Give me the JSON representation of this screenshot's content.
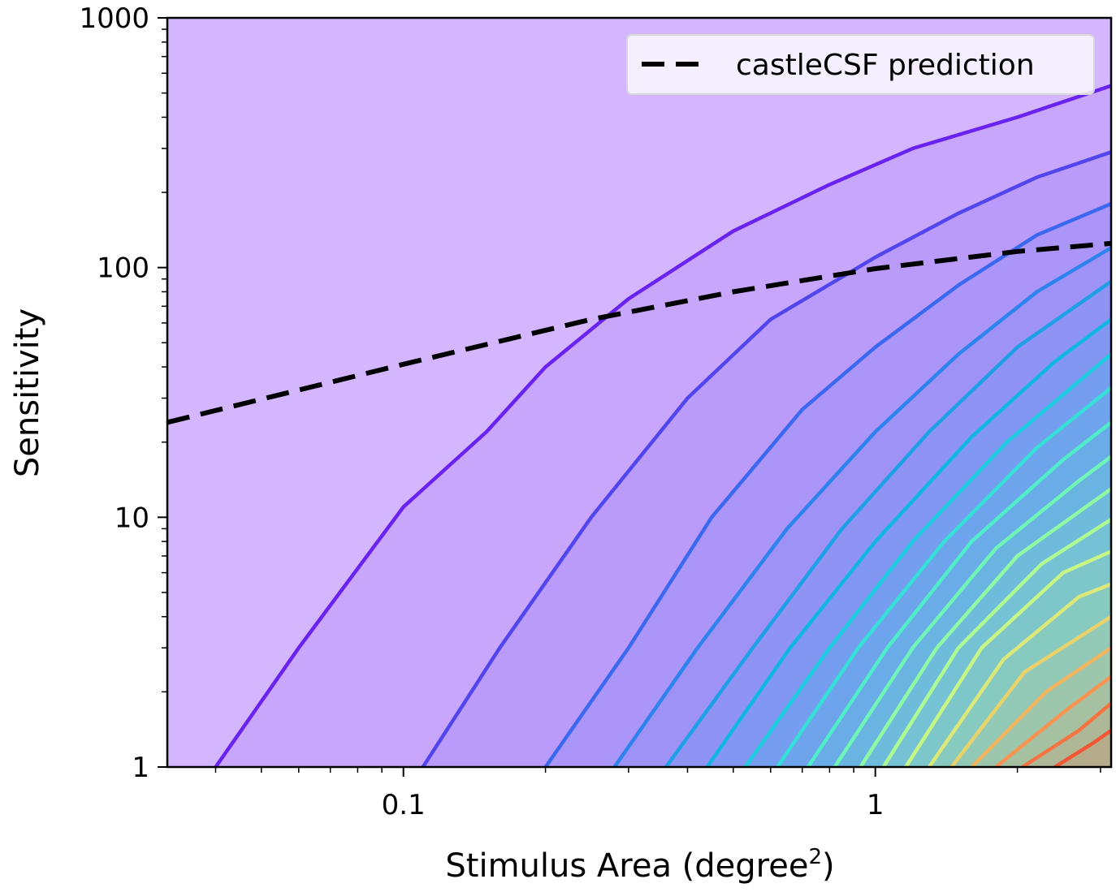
{
  "chart_data": {
    "type": "contour",
    "title": "",
    "xlabel": "Stimulus Area (degree",
    "xlabel_superscript": "2",
    "xlabel_close": ")",
    "ylabel": "Sensitivity",
    "xscale": "log",
    "yscale": "log",
    "xlim": [
      0.0316,
      3.16
    ],
    "ylim": [
      1,
      1000
    ],
    "xticks": [
      {
        "value": 0.1,
        "label": "0.1"
      },
      {
        "value": 1,
        "label": "1"
      }
    ],
    "yticks": [
      {
        "value": 1,
        "label": "1"
      },
      {
        "value": 10,
        "label": "10"
      },
      {
        "value": 100,
        "label": "100"
      },
      {
        "value": 1000,
        "label": "1000"
      }
    ],
    "legend": {
      "position": "upper right",
      "entries": [
        {
          "label": "castleCSF prediction",
          "style": "dashed",
          "color": "#000000"
        }
      ]
    },
    "prediction_line": {
      "label": "castleCSF prediction",
      "points": [
        {
          "x": 0.0316,
          "y": 24
        },
        {
          "x": 0.1,
          "y": 41
        },
        {
          "x": 0.25,
          "y": 62
        },
        {
          "x": 0.5,
          "y": 80
        },
        {
          "x": 1,
          "y": 99
        },
        {
          "x": 2,
          "y": 116
        },
        {
          "x": 3.16,
          "y": 125
        }
      ]
    },
    "contour_levels": [
      {
        "color": "#6a22f0",
        "points": [
          {
            "x": 0.04,
            "y": 1
          },
          {
            "x": 0.06,
            "y": 3
          },
          {
            "x": 0.1,
            "y": 11
          },
          {
            "x": 0.15,
            "y": 22
          },
          {
            "x": 0.2,
            "y": 40
          },
          {
            "x": 0.3,
            "y": 75
          },
          {
            "x": 0.5,
            "y": 140
          },
          {
            "x": 0.8,
            "y": 215
          },
          {
            "x": 1.2,
            "y": 300
          },
          {
            "x": 2,
            "y": 400
          },
          {
            "x": 3.16,
            "y": 535
          }
        ]
      },
      {
        "color": "#5146ee",
        "points": [
          {
            "x": 0.11,
            "y": 1
          },
          {
            "x": 0.16,
            "y": 3
          },
          {
            "x": 0.25,
            "y": 10
          },
          {
            "x": 0.4,
            "y": 30
          },
          {
            "x": 0.6,
            "y": 62
          },
          {
            "x": 1,
            "y": 110
          },
          {
            "x": 1.5,
            "y": 165
          },
          {
            "x": 2.2,
            "y": 230
          },
          {
            "x": 3.16,
            "y": 290
          }
        ]
      },
      {
        "color": "#3b68f0",
        "points": [
          {
            "x": 0.2,
            "y": 1
          },
          {
            "x": 0.3,
            "y": 3
          },
          {
            "x": 0.45,
            "y": 10
          },
          {
            "x": 0.7,
            "y": 27
          },
          {
            "x": 1,
            "y": 48
          },
          {
            "x": 1.5,
            "y": 85
          },
          {
            "x": 2.2,
            "y": 135
          },
          {
            "x": 3.16,
            "y": 180
          }
        ]
      },
      {
        "color": "#2d83ee",
        "points": [
          {
            "x": 0.28,
            "y": 1
          },
          {
            "x": 0.42,
            "y": 3
          },
          {
            "x": 0.65,
            "y": 9
          },
          {
            "x": 1,
            "y": 22
          },
          {
            "x": 1.5,
            "y": 45
          },
          {
            "x": 2.2,
            "y": 80
          },
          {
            "x": 3.16,
            "y": 120
          }
        ]
      },
      {
        "color": "#1ea0e8",
        "points": [
          {
            "x": 0.36,
            "y": 1
          },
          {
            "x": 0.55,
            "y": 3
          },
          {
            "x": 0.85,
            "y": 9
          },
          {
            "x": 1.3,
            "y": 22
          },
          {
            "x": 2,
            "y": 48
          },
          {
            "x": 3.16,
            "y": 88
          }
        ]
      },
      {
        "color": "#10b6e2",
        "points": [
          {
            "x": 0.44,
            "y": 1
          },
          {
            "x": 0.66,
            "y": 3
          },
          {
            "x": 1,
            "y": 8
          },
          {
            "x": 1.6,
            "y": 21
          },
          {
            "x": 2.4,
            "y": 42
          },
          {
            "x": 3.16,
            "y": 62
          }
        ]
      },
      {
        "color": "#1ccde0",
        "points": [
          {
            "x": 0.53,
            "y": 1
          },
          {
            "x": 0.8,
            "y": 3
          },
          {
            "x": 1.2,
            "y": 8
          },
          {
            "x": 1.9,
            "y": 20
          },
          {
            "x": 3.16,
            "y": 45
          }
        ]
      },
      {
        "color": "#35e0d6",
        "points": [
          {
            "x": 0.62,
            "y": 1
          },
          {
            "x": 0.92,
            "y": 3
          },
          {
            "x": 1.4,
            "y": 8
          },
          {
            "x": 2.2,
            "y": 19
          },
          {
            "x": 3.16,
            "y": 33
          }
        ]
      },
      {
        "color": "#4fedc8",
        "points": [
          {
            "x": 0.72,
            "y": 1
          },
          {
            "x": 1.06,
            "y": 3
          },
          {
            "x": 1.6,
            "y": 8
          },
          {
            "x": 2.5,
            "y": 17
          },
          {
            "x": 3.16,
            "y": 24
          }
        ]
      },
      {
        "color": "#6ff5b6",
        "points": [
          {
            "x": 0.82,
            "y": 1
          },
          {
            "x": 1.2,
            "y": 3
          },
          {
            "x": 1.8,
            "y": 7.5
          },
          {
            "x": 2.7,
            "y": 14
          },
          {
            "x": 3.16,
            "y": 17.5
          }
        ]
      },
      {
        "color": "#8ff9a4",
        "points": [
          {
            "x": 0.93,
            "y": 1
          },
          {
            "x": 1.35,
            "y": 3
          },
          {
            "x": 2,
            "y": 7
          },
          {
            "x": 3.16,
            "y": 13
          }
        ]
      },
      {
        "color": "#aefb94",
        "points": [
          {
            "x": 1.04,
            "y": 1
          },
          {
            "x": 1.5,
            "y": 3
          },
          {
            "x": 2.25,
            "y": 6.5
          },
          {
            "x": 3.16,
            "y": 9.8
          }
        ]
      },
      {
        "color": "#c8f685",
        "points": [
          {
            "x": 1.16,
            "y": 1
          },
          {
            "x": 1.68,
            "y": 3
          },
          {
            "x": 2.5,
            "y": 6
          },
          {
            "x": 3.16,
            "y": 7.3
          }
        ]
      },
      {
        "color": "#dce877",
        "points": [
          {
            "x": 1.3,
            "y": 1
          },
          {
            "x": 1.87,
            "y": 2.7
          },
          {
            "x": 2.7,
            "y": 4.8
          },
          {
            "x": 3.16,
            "y": 5.4
          }
        ]
      },
      {
        "color": "#ead26b",
        "points": [
          {
            "x": 1.45,
            "y": 1
          },
          {
            "x": 2.07,
            "y": 2.4
          },
          {
            "x": 3.16,
            "y": 4
          }
        ]
      },
      {
        "color": "#f3b45e",
        "points": [
          {
            "x": 1.6,
            "y": 1
          },
          {
            "x": 2.3,
            "y": 2
          },
          {
            "x": 3.16,
            "y": 3
          }
        ]
      },
      {
        "color": "#f8944f",
        "points": [
          {
            "x": 1.8,
            "y": 1
          },
          {
            "x": 2.55,
            "y": 1.7
          },
          {
            "x": 3.16,
            "y": 2.3
          }
        ]
      },
      {
        "color": "#f77442",
        "points": [
          {
            "x": 2.05,
            "y": 1
          },
          {
            "x": 2.7,
            "y": 1.4
          },
          {
            "x": 3.16,
            "y": 1.8
          }
        ]
      },
      {
        "color": "#f45532",
        "points": [
          {
            "x": 2.4,
            "y": 1
          },
          {
            "x": 2.9,
            "y": 1.25
          },
          {
            "x": 3.16,
            "y": 1.4
          }
        ]
      }
    ],
    "background_color": "#d4b6fe",
    "grid": false
  }
}
